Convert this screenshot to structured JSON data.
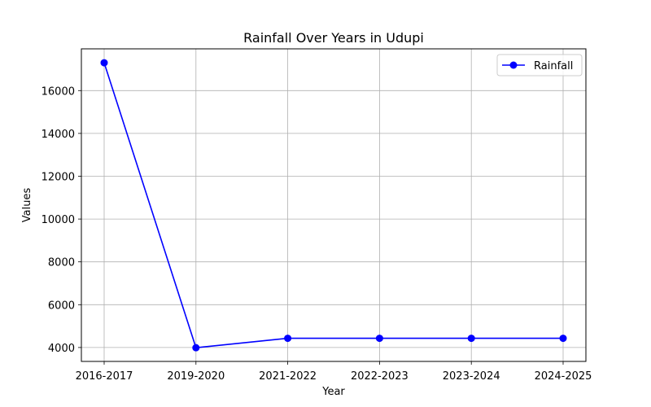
{
  "chart_data": {
    "type": "line",
    "title": "Rainfall Over Years in Udupi",
    "xlabel": "Year",
    "ylabel": "Values",
    "categories": [
      "2016-2017",
      "2019-2020",
      "2021-2022",
      "2022-2023",
      "2023-2024",
      "2024-2025"
    ],
    "series": [
      {
        "name": "Rainfall",
        "values": [
          17300,
          3990,
          4430,
          4430,
          4430,
          4430
        ],
        "color": "#0000ff",
        "marker": "circle"
      }
    ],
    "ylim": [
      3350,
      17950
    ],
    "yticks": [
      4000,
      6000,
      8000,
      10000,
      12000,
      14000,
      16000
    ],
    "grid": true,
    "legend_position": "top-right"
  }
}
